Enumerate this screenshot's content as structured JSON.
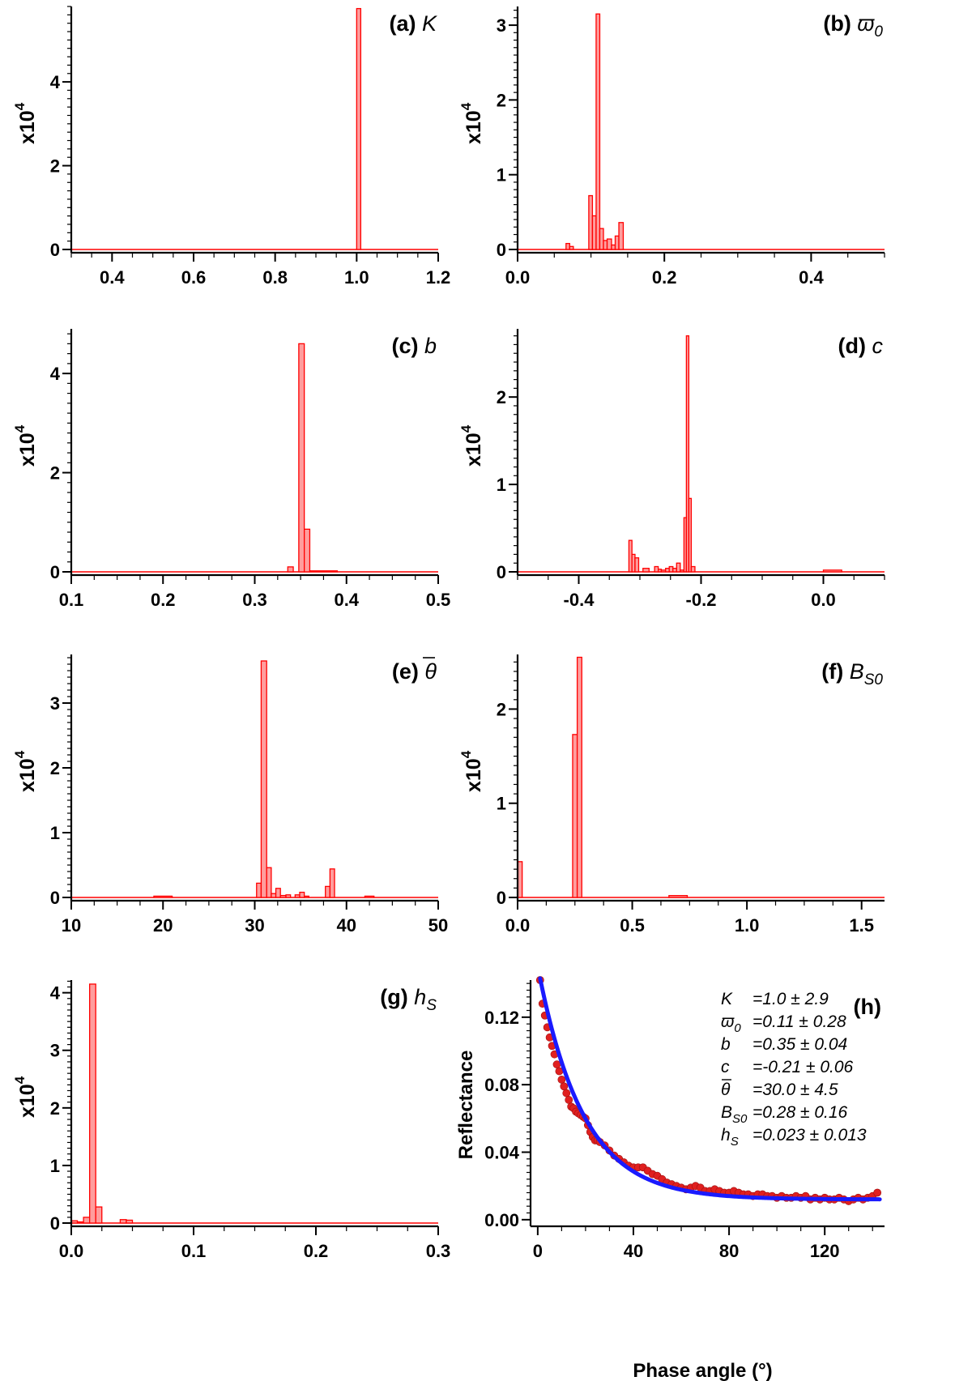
{
  "colors": {
    "bar_fill": "#ff9d9d",
    "bar_stroke": "#ff0000",
    "fit_line": "#1a1aff",
    "points": "#e02020"
  },
  "chart_data": [
    {
      "id": "a",
      "type": "bar",
      "label": "(a)",
      "symbol": "K",
      "sub": "",
      "ylabel": "x10",
      "ylabel_sup": "4",
      "xlim": [
        0.3,
        1.2
      ],
      "ylim": [
        0,
        5.8
      ],
      "xticks": [
        {
          "v": 0.4,
          "t": "0.4"
        },
        {
          "v": 0.6,
          "t": "0.6"
        },
        {
          "v": 0.8,
          "t": "0.8"
        },
        {
          "v": 1.0,
          "t": "1.0"
        },
        {
          "v": 1.2,
          "t": "1.2"
        }
      ],
      "yticks": [
        {
          "v": 0,
          "t": "0"
        },
        {
          "v": 2,
          "t": "2"
        },
        {
          "v": 4,
          "t": "4"
        }
      ],
      "bins": [
        [
          1.0,
          1.01,
          5.75
        ]
      ]
    },
    {
      "id": "b",
      "type": "bar",
      "label": "(b)",
      "symbol": "ϖ",
      "sub": "0",
      "ylabel": "x10",
      "ylabel_sup": "4",
      "xlim": [
        0.0,
        0.5
      ],
      "ylim": [
        0,
        3.25
      ],
      "xticks": [
        {
          "v": 0.0,
          "t": "0.0"
        },
        {
          "v": 0.2,
          "t": "0.2"
        },
        {
          "v": 0.4,
          "t": "0.4"
        }
      ],
      "yticks": [
        {
          "v": 0,
          "t": "0"
        },
        {
          "v": 1,
          "t": "1"
        },
        {
          "v": 2,
          "t": "2"
        },
        {
          "v": 3,
          "t": "3"
        }
      ],
      "bins": [
        [
          0.066,
          0.071,
          0.08
        ],
        [
          0.071,
          0.076,
          0.04
        ],
        [
          0.097,
          0.102,
          0.72
        ],
        [
          0.102,
          0.107,
          0.45
        ],
        [
          0.107,
          0.112,
          3.15
        ],
        [
          0.112,
          0.117,
          0.28
        ],
        [
          0.117,
          0.122,
          0.12
        ],
        [
          0.122,
          0.128,
          0.14
        ],
        [
          0.128,
          0.133,
          0.06
        ],
        [
          0.133,
          0.138,
          0.18
        ],
        [
          0.138,
          0.144,
          0.36
        ]
      ]
    },
    {
      "id": "c",
      "type": "bar",
      "label": "(c)",
      "symbol": "b",
      "sub": "",
      "ylabel": "x10",
      "ylabel_sup": "4",
      "xlim": [
        0.1,
        0.5
      ],
      "ylim": [
        0,
        4.9
      ],
      "xticks": [
        {
          "v": 0.1,
          "t": "0.1"
        },
        {
          "v": 0.2,
          "t": "0.2"
        },
        {
          "v": 0.3,
          "t": "0.3"
        },
        {
          "v": 0.4,
          "t": "0.4"
        },
        {
          "v": 0.5,
          "t": "0.5"
        }
      ],
      "yticks": [
        {
          "v": 0,
          "t": "0"
        },
        {
          "v": 2,
          "t": "2"
        },
        {
          "v": 4,
          "t": "4"
        }
      ],
      "bins": [
        [
          0.336,
          0.342,
          0.1
        ],
        [
          0.348,
          0.354,
          4.6
        ],
        [
          0.354,
          0.36,
          0.86
        ],
        [
          0.36,
          0.39,
          0.02
        ]
      ]
    },
    {
      "id": "d",
      "type": "bar",
      "label": "(d)",
      "symbol": "c",
      "sub": "",
      "ylabel": "x10",
      "ylabel_sup": "4",
      "xlim": [
        -0.5,
        0.1
      ],
      "ylim": [
        0,
        2.78
      ],
      "xticks": [
        {
          "v": -0.4,
          "t": "-0.4"
        },
        {
          "v": -0.2,
          "t": "-0.2"
        },
        {
          "v": 0.0,
          "t": "0.0"
        }
      ],
      "yticks": [
        {
          "v": 0,
          "t": "0"
        },
        {
          "v": 1,
          "t": "1"
        },
        {
          "v": 2,
          "t": "2"
        }
      ],
      "bins": [
        [
          -0.318,
          -0.313,
          0.36
        ],
        [
          -0.313,
          -0.308,
          0.2
        ],
        [
          -0.308,
          -0.302,
          0.16
        ],
        [
          -0.295,
          -0.285,
          0.04
        ],
        [
          -0.276,
          -0.27,
          0.06
        ],
        [
          -0.27,
          -0.265,
          0.03
        ],
        [
          -0.265,
          -0.258,
          0.02
        ],
        [
          -0.258,
          -0.252,
          0.04
        ],
        [
          -0.252,
          -0.246,
          0.06
        ],
        [
          -0.246,
          -0.24,
          0.04
        ],
        [
          -0.24,
          -0.234,
          0.1
        ],
        [
          -0.234,
          -0.228,
          0.02
        ],
        [
          -0.228,
          -0.224,
          0.62
        ],
        [
          -0.224,
          -0.22,
          2.7
        ],
        [
          -0.22,
          -0.216,
          0.84
        ],
        [
          -0.216,
          -0.21,
          0.06
        ],
        [
          0.0,
          0.03,
          0.02
        ]
      ]
    },
    {
      "id": "e",
      "type": "bar",
      "label": "(e)",
      "symbol": "θ",
      "sub": "",
      "overbar": true,
      "ylabel": "x10",
      "ylabel_sup": "4",
      "xlim": [
        10,
        50
      ],
      "ylim": [
        0,
        3.75
      ],
      "xticks": [
        {
          "v": 10,
          "t": "10"
        },
        {
          "v": 20,
          "t": "20"
        },
        {
          "v": 30,
          "t": "30"
        },
        {
          "v": 40,
          "t": "40"
        },
        {
          "v": 50,
          "t": "50"
        }
      ],
      "yticks": [
        {
          "v": 0,
          "t": "0"
        },
        {
          "v": 1,
          "t": "1"
        },
        {
          "v": 2,
          "t": "2"
        },
        {
          "v": 3,
          "t": "3"
        }
      ],
      "bins": [
        [
          19.0,
          21.0,
          0.02
        ],
        [
          30.2,
          30.7,
          0.22
        ],
        [
          30.7,
          31.3,
          3.65
        ],
        [
          31.3,
          31.8,
          0.46
        ],
        [
          31.8,
          32.3,
          0.06
        ],
        [
          32.3,
          32.8,
          0.14
        ],
        [
          32.8,
          33.4,
          0.03
        ],
        [
          33.4,
          33.9,
          0.04
        ],
        [
          34.4,
          34.9,
          0.04
        ],
        [
          34.9,
          35.4,
          0.08
        ],
        [
          35.4,
          35.9,
          0.02
        ],
        [
          37.7,
          38.2,
          0.17
        ],
        [
          38.2,
          38.7,
          0.44
        ],
        [
          42.0,
          43.0,
          0.02
        ]
      ]
    },
    {
      "id": "f",
      "type": "bar",
      "label": "(f)",
      "symbol": "B",
      "sub": "S0",
      "ylabel": "x10",
      "ylabel_sup": "4",
      "xlim": [
        0.0,
        1.6
      ],
      "ylim": [
        0,
        2.58
      ],
      "xticks": [
        {
          "v": 0.0,
          "t": "0.0"
        },
        {
          "v": 0.5,
          "t": "0.5"
        },
        {
          "v": 1.0,
          "t": "1.0"
        },
        {
          "v": 1.5,
          "t": "1.5"
        }
      ],
      "yticks": [
        {
          "v": 0,
          "t": "0"
        },
        {
          "v": 1,
          "t": "1"
        },
        {
          "v": 2,
          "t": "2"
        }
      ],
      "bins": [
        [
          0.0,
          0.02,
          0.38
        ],
        [
          0.24,
          0.26,
          1.73
        ],
        [
          0.26,
          0.28,
          2.55
        ],
        [
          0.66,
          0.74,
          0.02
        ]
      ]
    },
    {
      "id": "g",
      "type": "bar",
      "label": "(g)",
      "symbol": "h",
      "sub": "S",
      "ylabel": "x10",
      "ylabel_sup": "4",
      "xlim": [
        0.0,
        0.3
      ],
      "ylim": [
        0,
        4.22
      ],
      "xticks": [
        {
          "v": 0.0,
          "t": "0.0"
        },
        {
          "v": 0.1,
          "t": "0.1"
        },
        {
          "v": 0.2,
          "t": "0.2"
        },
        {
          "v": 0.3,
          "t": "0.3"
        }
      ],
      "yticks": [
        {
          "v": 0,
          "t": "0"
        },
        {
          "v": 1,
          "t": "1"
        },
        {
          "v": 2,
          "t": "2"
        },
        {
          "v": 3,
          "t": "3"
        },
        {
          "v": 4,
          "t": "4"
        }
      ],
      "bins": [
        [
          0.0,
          0.005,
          0.04
        ],
        [
          0.005,
          0.01,
          0.02
        ],
        [
          0.01,
          0.015,
          0.1
        ],
        [
          0.015,
          0.02,
          4.15
        ],
        [
          0.02,
          0.025,
          0.28
        ],
        [
          0.04,
          0.045,
          0.06
        ],
        [
          0.045,
          0.05,
          0.05
        ]
      ]
    },
    {
      "id": "h",
      "type": "scatter",
      "label": "(h)",
      "xlabel": "Phase angle (°)",
      "ylabel": "Reflectance",
      "xlim": [
        -3,
        145
      ],
      "ylim": [
        -0.002,
        0.142
      ],
      "xticks": [
        {
          "v": 0,
          "t": "0"
        },
        {
          "v": 40,
          "t": "40"
        },
        {
          "v": 80,
          "t": "80"
        },
        {
          "v": 120,
          "t": "120"
        }
      ],
      "yticks": [
        {
          "v": 0.0,
          "t": "0.00"
        },
        {
          "v": 0.04,
          "t": "0.04"
        },
        {
          "v": 0.08,
          "t": "0.08"
        },
        {
          "v": 0.12,
          "t": "0.12"
        }
      ],
      "fit": {
        "A": 0.131,
        "k": 0.053,
        "C": 0.012,
        "x0": 1,
        "x1": 143
      },
      "points": [
        [
          1,
          0.142
        ],
        [
          2,
          0.128
        ],
        [
          3,
          0.121
        ],
        [
          4,
          0.114
        ],
        [
          5,
          0.108
        ],
        [
          6,
          0.103
        ],
        [
          7,
          0.098
        ],
        [
          8,
          0.092
        ],
        [
          9,
          0.088
        ],
        [
          10,
          0.083
        ],
        [
          11,
          0.079
        ],
        [
          12,
          0.075
        ],
        [
          13,
          0.071
        ],
        [
          14,
          0.067
        ],
        [
          15,
          0.066
        ],
        [
          16,
          0.064
        ],
        [
          17,
          0.063
        ],
        [
          18,
          0.062
        ],
        [
          19,
          0.061
        ],
        [
          20,
          0.06
        ],
        [
          21,
          0.056
        ],
        [
          22,
          0.052
        ],
        [
          23,
          0.049
        ],
        [
          24,
          0.047
        ],
        [
          25,
          0.047
        ],
        [
          26,
          0.046
        ],
        [
          28,
          0.044
        ],
        [
          30,
          0.041
        ],
        [
          32,
          0.038
        ],
        [
          34,
          0.036
        ],
        [
          36,
          0.034
        ],
        [
          38,
          0.032
        ],
        [
          40,
          0.031
        ],
        [
          42,
          0.031
        ],
        [
          44,
          0.031
        ],
        [
          46,
          0.029
        ],
        [
          48,
          0.027
        ],
        [
          50,
          0.026
        ],
        [
          52,
          0.024
        ],
        [
          54,
          0.022
        ],
        [
          56,
          0.021
        ],
        [
          58,
          0.02
        ],
        [
          60,
          0.019
        ],
        [
          62,
          0.018
        ],
        [
          64,
          0.019
        ],
        [
          66,
          0.02
        ],
        [
          68,
          0.019
        ],
        [
          70,
          0.017
        ],
        [
          72,
          0.017
        ],
        [
          74,
          0.018
        ],
        [
          76,
          0.017
        ],
        [
          78,
          0.016
        ],
        [
          80,
          0.016
        ],
        [
          82,
          0.017
        ],
        [
          84,
          0.016
        ],
        [
          86,
          0.015
        ],
        [
          88,
          0.015
        ],
        [
          90,
          0.014
        ],
        [
          92,
          0.015
        ],
        [
          94,
          0.015
        ],
        [
          96,
          0.014
        ],
        [
          98,
          0.014
        ],
        [
          100,
          0.013
        ],
        [
          102,
          0.014
        ],
        [
          104,
          0.013
        ],
        [
          106,
          0.013
        ],
        [
          108,
          0.014
        ],
        [
          110,
          0.013
        ],
        [
          112,
          0.014
        ],
        [
          114,
          0.012
        ],
        [
          116,
          0.013
        ],
        [
          118,
          0.012
        ],
        [
          120,
          0.013
        ],
        [
          122,
          0.012
        ],
        [
          124,
          0.012
        ],
        [
          126,
          0.013
        ],
        [
          128,
          0.012
        ],
        [
          130,
          0.011
        ],
        [
          132,
          0.012
        ],
        [
          134,
          0.013
        ],
        [
          136,
          0.012
        ],
        [
          138,
          0.013
        ],
        [
          140,
          0.014
        ],
        [
          142,
          0.016
        ]
      ],
      "annotations": [
        {
          "sym": "K",
          "sub": "",
          "bar": false,
          "val": "=1.0 ± 2.9"
        },
        {
          "sym": "ϖ",
          "sub": "0",
          "bar": false,
          "val": "=0.11 ± 0.28"
        },
        {
          "sym": "b",
          "sub": "",
          "bar": false,
          "val": "=0.35 ± 0.04"
        },
        {
          "sym": "c",
          "sub": "",
          "bar": false,
          "val": "=-0.21 ± 0.06"
        },
        {
          "sym": "θ",
          "sub": "",
          "bar": true,
          "val": "=30.0 ± 4.5"
        },
        {
          "sym": "B",
          "sub": "S0",
          "bar": false,
          "val": "=0.28 ± 0.16"
        },
        {
          "sym": "h",
          "sub": "S",
          "bar": false,
          "val": "=0.023 ± 0.013"
        }
      ]
    }
  ]
}
